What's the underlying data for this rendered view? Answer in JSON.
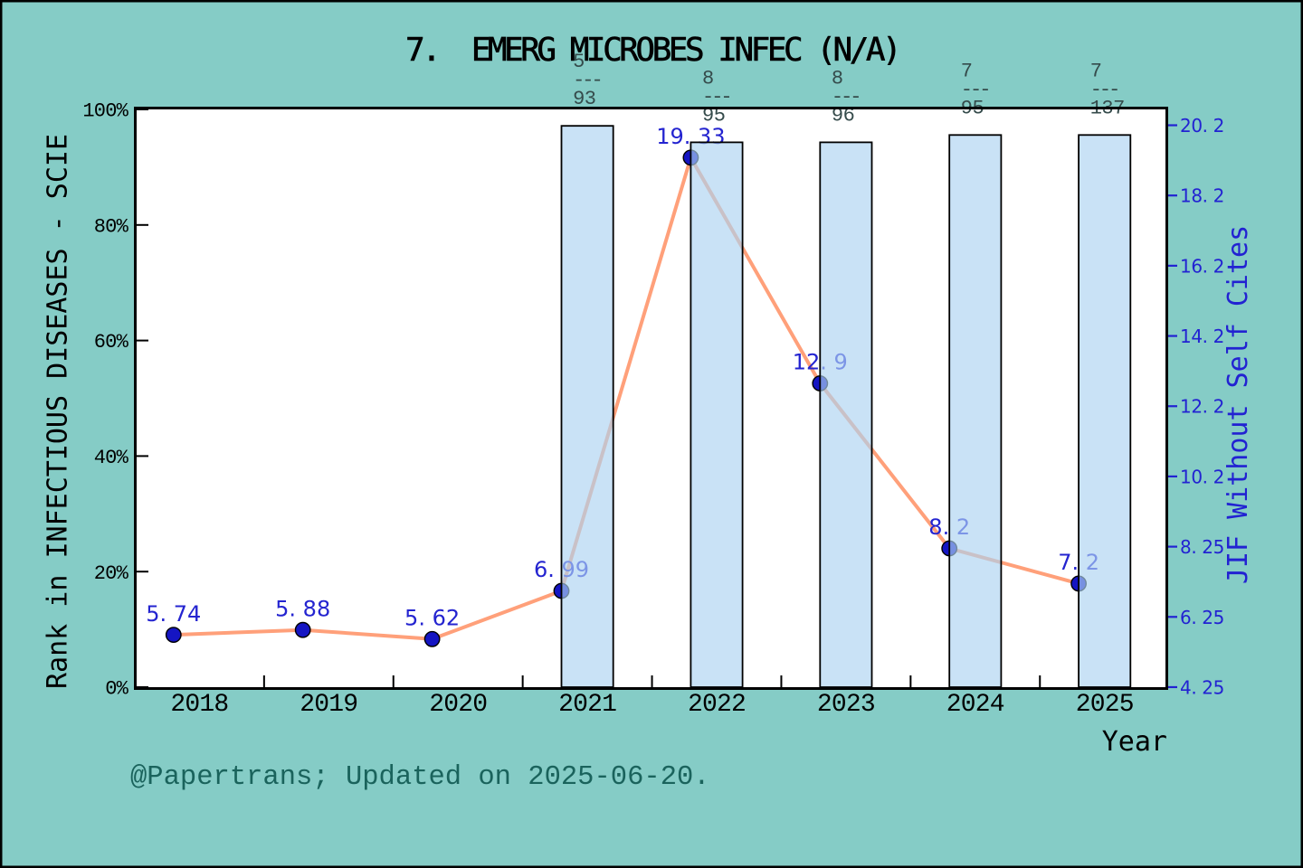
{
  "figure": {
    "title": {
      "text": "7. EMERG MICROBES INFEC (N/A)",
      "display": "7.  EMERG MICROBES INFEC (N/A)"
    },
    "footer": "@Papertrans; Updated on 2025-06-20.",
    "background_color": "#85CCC6",
    "frame_color": "#000000",
    "plot_background": "#FFFFFF"
  },
  "chart_data": {
    "type": "line+bar",
    "x_categories": [
      "2018",
      "2019",
      "2020",
      "2021",
      "2022",
      "2023",
      "2024",
      "2025"
    ],
    "x_axis": {
      "label": "Year",
      "tick_label_color": "#000000"
    },
    "left_axis": {
      "label": "Rank in INFECTIOUS DISEASES - SCIE",
      "ticks": [
        "0%",
        "20%",
        "40%",
        "60%",
        "80%",
        "100%"
      ],
      "tick_values": [
        0,
        20,
        40,
        60,
        80,
        100
      ],
      "range": [
        0,
        100
      ],
      "color": "#000000"
    },
    "right_axis": {
      "label": "JIF Without Self Cites",
      "ticks": [
        "4. 25",
        "6. 25",
        "8. 25",
        "10. 2",
        "12. 2",
        "14. 2",
        "16. 2",
        "18. 2",
        "20. 2"
      ],
      "tick_values": [
        4.25,
        6.25,
        8.25,
        10.25,
        12.25,
        14.25,
        16.25,
        18.25,
        20.25
      ],
      "range": [
        4.249,
        20.701
      ],
      "color": "#2222D2"
    },
    "series": [
      {
        "name": "JIF Without Self Cites",
        "type": "line",
        "axis": "right",
        "line_color": "#FFA07A",
        "marker_color": "#1515C3",
        "marker_edge_color": "#000000",
        "label_color": "#2424D0",
        "x": [
          "2018",
          "2019",
          "2020",
          "2021",
          "2022",
          "2023",
          "2024",
          "2025"
        ],
        "values": [
          5.74,
          5.88,
          5.62,
          6.99,
          19.33,
          12.9,
          8.2,
          7.2
        ],
        "value_labels": [
          "5. 74",
          "5. 88",
          "5. 62",
          "6. 99",
          "19. 33",
          "12. 9",
          "8. 2",
          "7. 2"
        ]
      },
      {
        "name": "Rank in INFECTIOUS DISEASES - SCIE",
        "type": "bar",
        "axis": "left",
        "fill_color": "rgba(172,210,241,0.65)",
        "edge_color": "#000000",
        "annotation_color": "#354B4B",
        "bars": [
          {
            "x": "2021",
            "rank": "5",
            "total": "93",
            "fraction_lines": [
              "5",
              "---",
              "93"
            ],
            "top_percent": 97.15
          },
          {
            "x": "2022",
            "rank": "8",
            "total": "95",
            "fraction_lines": [
              "8",
              "---",
              "95"
            ],
            "top_percent": 94.3
          },
          {
            "x": "2023",
            "rank": "8",
            "total": "96",
            "fraction_lines": [
              "8",
              "---",
              "96"
            ],
            "top_percent": 94.3
          },
          {
            "x": "2024",
            "rank": "7",
            "total": "95",
            "fraction_lines": [
              "7",
              "---",
              "95"
            ],
            "top_percent": 95.57
          },
          {
            "x": "2025",
            "rank": "7",
            "total": "137",
            "fraction_lines": [
              "7",
              "---",
              "137"
            ],
            "top_percent": 95.57
          }
        ]
      }
    ],
    "legend": null,
    "grid": false
  }
}
